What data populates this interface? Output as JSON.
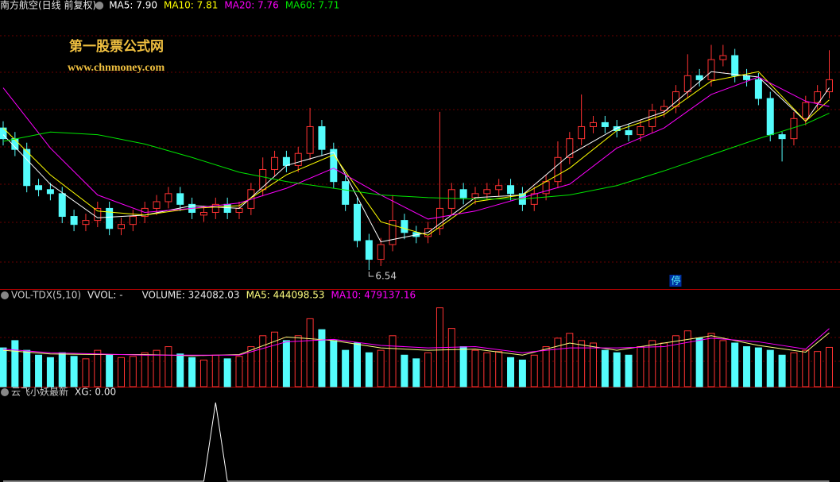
{
  "chart_data": [
    {
      "type": "candlestick",
      "title": "南方航空(日线 前复权)",
      "ylim": [
        6.41,
        8.46
      ],
      "up_color": "#ff3232",
      "down_color": "#54fcfc",
      "open": [
        7.6,
        7.52,
        7.44,
        7.17,
        7.14,
        7.11,
        6.94,
        6.88,
        6.91,
        7.0,
        6.85,
        6.88,
        6.94,
        7.0,
        7.05,
        7.11,
        7.03,
        6.95,
        6.97,
        7.03,
        6.97,
        7.0,
        7.14,
        7.29,
        7.38,
        7.32,
        7.41,
        7.61,
        7.44,
        7.2,
        7.03,
        6.76,
        6.62,
        6.73,
        6.91,
        6.82,
        6.79,
        6.85,
        7.0,
        7.14,
        7.08,
        7.11,
        7.14,
        7.17,
        7.11,
        7.03,
        7.11,
        7.2,
        7.38,
        7.52,
        7.61,
        7.64,
        7.61,
        7.58,
        7.55,
        7.61,
        7.73,
        7.76,
        7.87,
        7.99,
        7.96,
        8.11,
        8.14,
        7.99,
        7.96,
        7.82,
        7.55,
        7.52,
        7.67,
        7.79,
        7.87
      ],
      "high": [
        7.65,
        7.57,
        7.49,
        7.22,
        7.19,
        7.16,
        6.99,
        6.96,
        7.05,
        7.05,
        6.93,
        6.99,
        7.05,
        7.1,
        7.16,
        7.16,
        7.08,
        7.02,
        7.08,
        7.08,
        7.05,
        7.19,
        7.38,
        7.43,
        7.43,
        7.46,
        7.75,
        7.66,
        7.49,
        7.25,
        7.08,
        6.81,
        6.78,
        7.1,
        6.96,
        6.87,
        6.9,
        7.72,
        7.19,
        7.19,
        7.16,
        7.19,
        7.22,
        7.22,
        7.16,
        7.16,
        7.25,
        7.5,
        7.57,
        7.85,
        7.69,
        7.69,
        7.66,
        7.63,
        7.66,
        7.78,
        7.81,
        7.92,
        8.15,
        8.04,
        8.22,
        8.22,
        8.19,
        8.04,
        8.01,
        7.87,
        7.57,
        7.72,
        7.84,
        7.92,
        8.18
      ],
      "low": [
        7.47,
        7.39,
        7.12,
        7.09,
        7.06,
        6.89,
        6.83,
        6.83,
        6.86,
        6.8,
        6.8,
        6.83,
        6.89,
        6.95,
        7.0,
        6.98,
        6.92,
        6.9,
        6.92,
        6.92,
        6.92,
        6.95,
        7.09,
        7.24,
        7.27,
        7.27,
        7.36,
        7.39,
        7.15,
        6.98,
        6.71,
        6.54,
        6.57,
        6.68,
        6.77,
        6.74,
        6.74,
        6.8,
        6.95,
        7.03,
        7.03,
        7.06,
        7.09,
        7.06,
        6.98,
        6.98,
        7.06,
        7.15,
        7.33,
        7.47,
        7.56,
        7.56,
        7.53,
        7.5,
        7.5,
        7.56,
        7.68,
        7.71,
        7.82,
        7.91,
        7.91,
        8.06,
        7.94,
        7.91,
        7.77,
        7.5,
        7.35,
        7.47,
        7.62,
        7.74,
        7.82
      ],
      "close": [
        7.52,
        7.44,
        7.17,
        7.14,
        7.11,
        6.94,
        6.88,
        6.91,
        7.0,
        6.85,
        6.88,
        6.94,
        7.0,
        7.05,
        7.11,
        7.03,
        6.97,
        6.97,
        7.03,
        6.97,
        7.0,
        7.14,
        7.29,
        7.38,
        7.32,
        7.41,
        7.61,
        7.44,
        7.2,
        7.03,
        6.76,
        6.62,
        6.73,
        6.91,
        6.82,
        6.79,
        6.85,
        7.0,
        7.14,
        7.08,
        7.11,
        7.14,
        7.17,
        7.11,
        7.03,
        7.11,
        7.2,
        7.38,
        7.52,
        7.61,
        7.64,
        7.61,
        7.58,
        7.55,
        7.61,
        7.73,
        7.76,
        7.87,
        7.99,
        7.96,
        8.11,
        8.14,
        7.99,
        7.96,
        7.82,
        7.55,
        7.52,
        7.67,
        7.79,
        7.87,
        7.96
      ],
      "series": [
        {
          "label": "MA5: 7.90",
          "color": "#ffffff",
          "x": [
            0,
            4,
            8,
            12,
            16,
            20,
            24,
            28,
            32,
            36,
            40,
            44,
            48,
            52,
            56,
            60,
            64,
            68,
            70
          ],
          "values": [
            7.55,
            7.18,
            6.93,
            6.95,
            7.02,
            7.0,
            7.32,
            7.42,
            6.75,
            6.82,
            7.08,
            7.1,
            7.4,
            7.6,
            7.72,
            8.02,
            7.98,
            7.65,
            7.9
          ]
        },
        {
          "label": "MA10: 7.81",
          "color": "#ffff00",
          "x": [
            0,
            4,
            8,
            12,
            16,
            20,
            24,
            28,
            32,
            36,
            40,
            44,
            48,
            52,
            56,
            60,
            64,
            68,
            70
          ],
          "values": [
            7.6,
            7.25,
            6.98,
            6.95,
            7.0,
            7.02,
            7.25,
            7.4,
            6.9,
            6.8,
            7.05,
            7.1,
            7.3,
            7.58,
            7.7,
            7.95,
            8.02,
            7.65,
            7.81
          ]
        },
        {
          "label": "MA20: 7.76",
          "color": "#ff00ff",
          "x": [
            0,
            4,
            8,
            12,
            16,
            20,
            24,
            28,
            32,
            36,
            40,
            44,
            48,
            52,
            56,
            60,
            64,
            68,
            70
          ],
          "values": [
            7.9,
            7.45,
            7.1,
            6.97,
            7.0,
            7.04,
            7.15,
            7.3,
            7.1,
            6.92,
            6.98,
            7.08,
            7.18,
            7.45,
            7.6,
            7.85,
            7.98,
            7.8,
            7.76
          ]
        },
        {
          "label": "MA60: 7.71",
          "color": "#00e600",
          "x": [
            0,
            4,
            8,
            12,
            16,
            20,
            24,
            28,
            32,
            36,
            40,
            44,
            48,
            52,
            56,
            60,
            64,
            68,
            70
          ],
          "values": [
            7.5,
            7.57,
            7.55,
            7.48,
            7.38,
            7.27,
            7.2,
            7.15,
            7.1,
            7.08,
            7.07,
            7.07,
            7.1,
            7.17,
            7.28,
            7.4,
            7.52,
            7.63,
            7.71
          ]
        }
      ],
      "annotations": [
        {
          "label": "6.54",
          "x": 31,
          "y": 6.54
        },
        {
          "label": "停",
          "x": 57
        }
      ],
      "watermark": [
        "第一股票公式网",
        "www.chnmoney.com"
      ]
    },
    {
      "type": "bar",
      "title": "VOL-TDX(5,10)",
      "legend": [
        "VVOL: -",
        "VOLUME: 324082.03"
      ],
      "ylim": [
        0,
        700000
      ],
      "values": [
        320000,
        380000,
        300000,
        260000,
        240000,
        280000,
        250000,
        230000,
        300000,
        260000,
        240000,
        250000,
        280000,
        300000,
        330000,
        270000,
        240000,
        220000,
        260000,
        230000,
        250000,
        330000,
        420000,
        450000,
        380000,
        420000,
        560000,
        470000,
        380000,
        300000,
        360000,
        280000,
        300000,
        420000,
        260000,
        230000,
        280000,
        650000,
        480000,
        330000,
        300000,
        280000,
        290000,
        240000,
        220000,
        260000,
        330000,
        400000,
        440000,
        380000,
        360000,
        300000,
        280000,
        260000,
        330000,
        380000,
        360000,
        420000,
        460000,
        400000,
        440000,
        380000,
        360000,
        330000,
        320000,
        300000,
        260000,
        280000,
        300000,
        290000,
        324082.03
      ],
      "series": [
        {
          "label": "MA5: 444098.53",
          "color": "#ffff80",
          "x": [
            0,
            4,
            8,
            12,
            16,
            20,
            24,
            28,
            32,
            36,
            40,
            44,
            48,
            52,
            56,
            60,
            64,
            68,
            70
          ],
          "values": [
            300000,
            270000,
            265000,
            265000,
            255000,
            265000,
            410000,
            380000,
            320000,
            300000,
            310000,
            260000,
            360000,
            300000,
            360000,
            420000,
            340000,
            285000,
            444098.53
          ]
        },
        {
          "label": "MA10: 479137.16",
          "color": "#ff00ff",
          "x": [
            0,
            4,
            8,
            12,
            16,
            20,
            24,
            28,
            32,
            36,
            40,
            44,
            48,
            52,
            56,
            60,
            64,
            68,
            70
          ],
          "values": [
            310000,
            280000,
            270000,
            260000,
            260000,
            260000,
            370000,
            390000,
            340000,
            320000,
            330000,
            280000,
            320000,
            320000,
            330000,
            400000,
            370000,
            310000,
            479137.16
          ]
        }
      ]
    },
    {
      "type": "line",
      "title": "云飞小妖最新",
      "legend": [
        "XG: 0.00"
      ],
      "color": "#ffffff",
      "ylim": [
        0,
        1.05
      ],
      "values": [
        0,
        0,
        0,
        0,
        0,
        0,
        0,
        0,
        0,
        0,
        0,
        0,
        0,
        0,
        0,
        0,
        0,
        0,
        1,
        0,
        0,
        0,
        0,
        0,
        0,
        0,
        0,
        0,
        0,
        0,
        0,
        0,
        0,
        0,
        0,
        0,
        0,
        0,
        0,
        0,
        0,
        0,
        0,
        0,
        0,
        0,
        0,
        0,
        0,
        0,
        0,
        0,
        0,
        0,
        0,
        0,
        0,
        0,
        0,
        0,
        0,
        0,
        0,
        0,
        0,
        0,
        0,
        0,
        0,
        0,
        0
      ]
    }
  ]
}
